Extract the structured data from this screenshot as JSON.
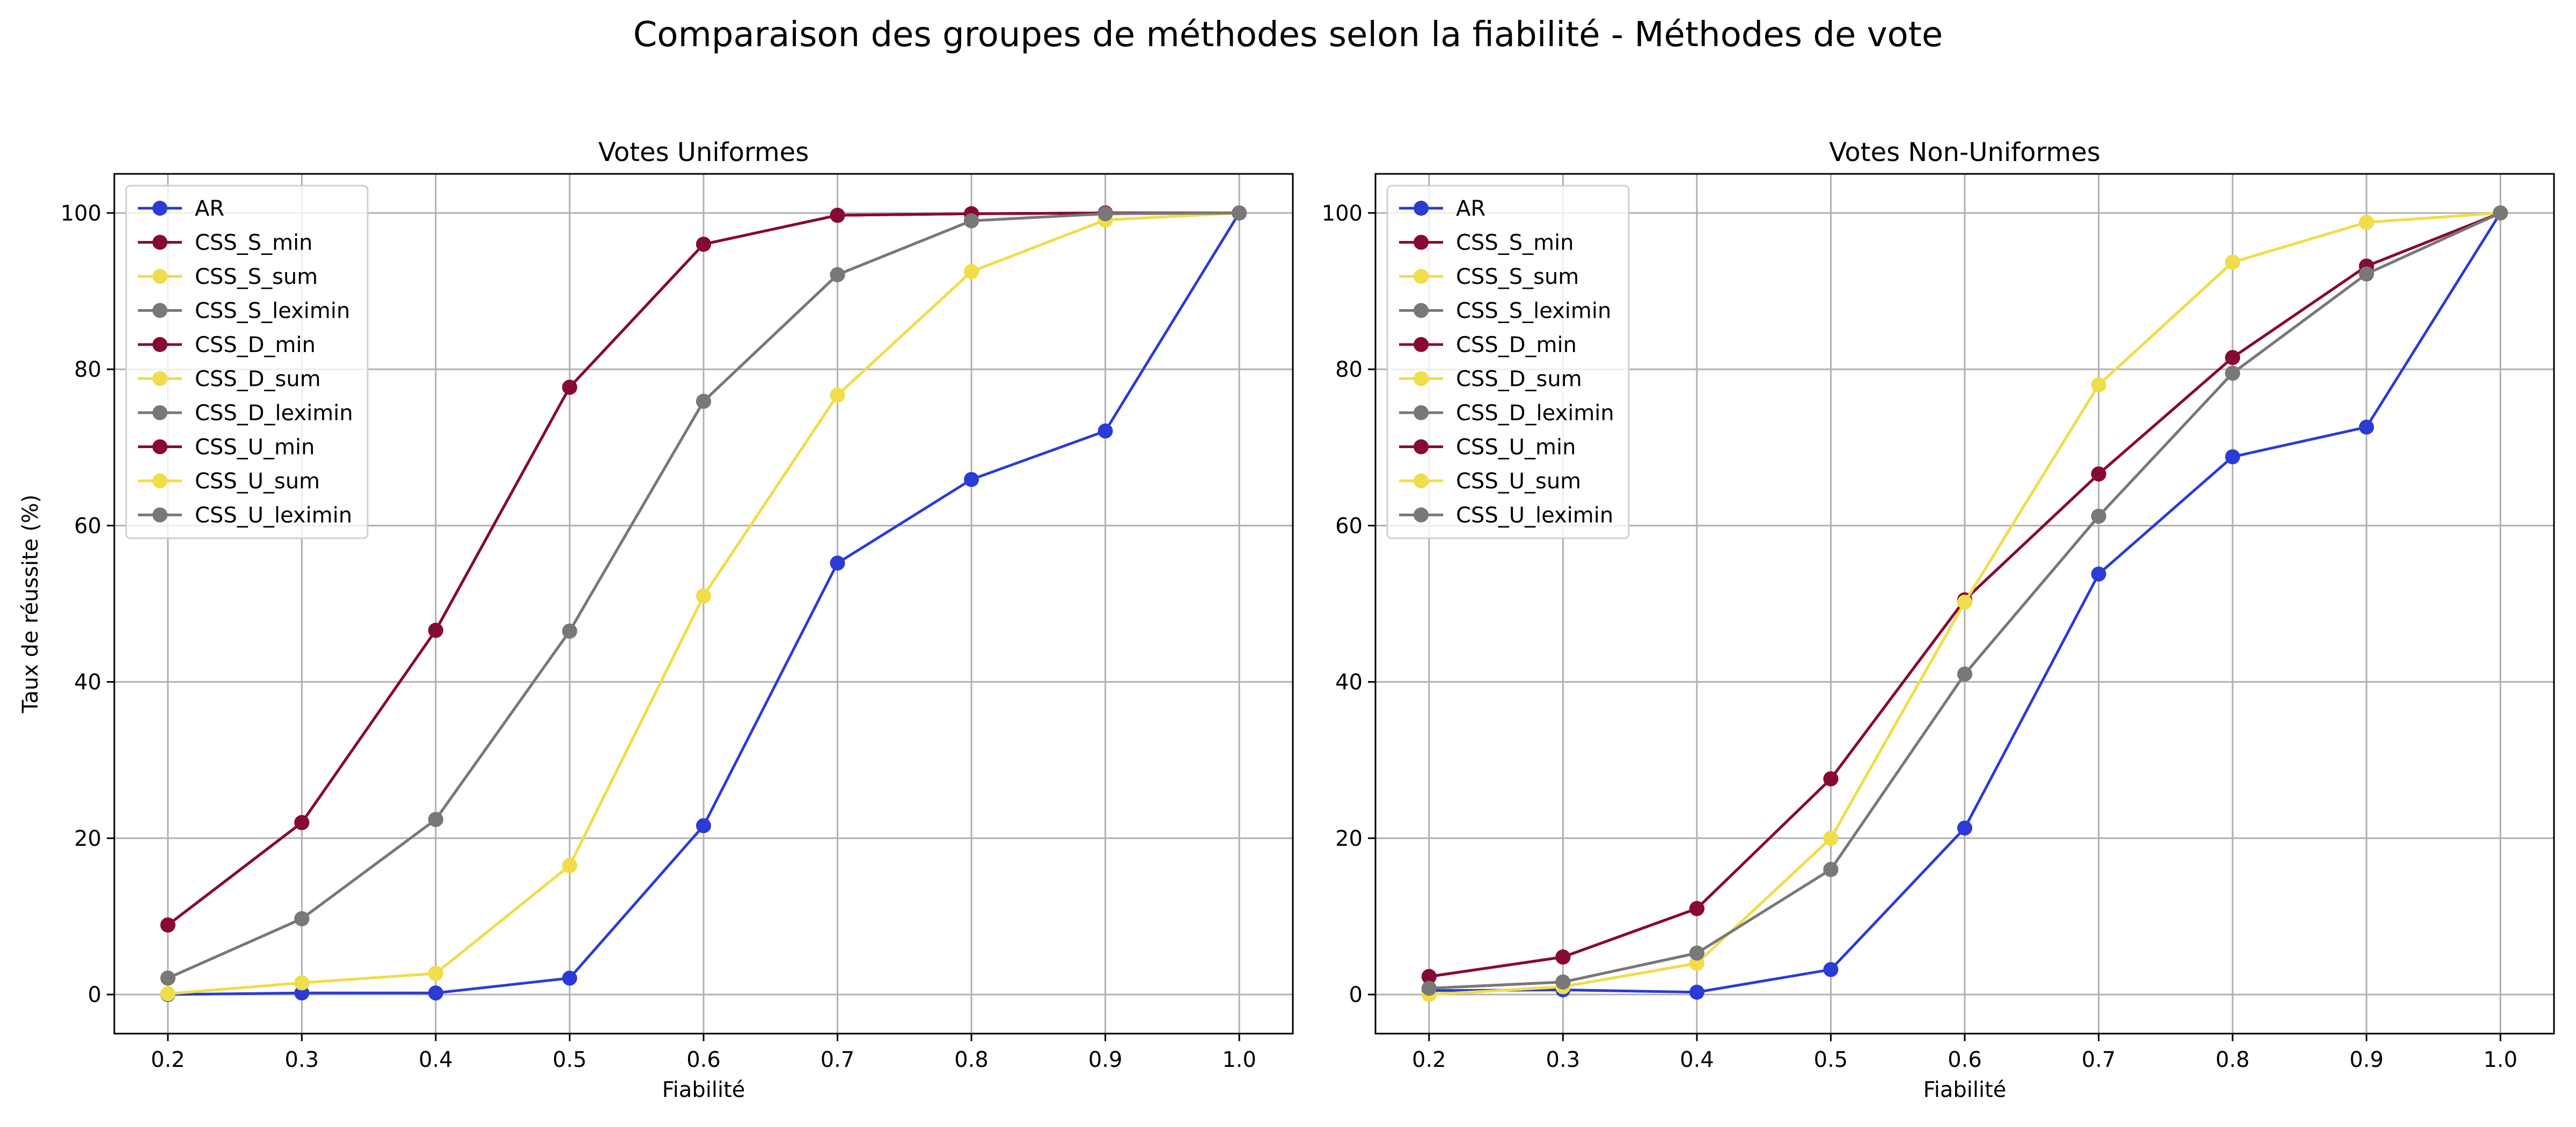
{
  "suptitle": "Comparaison des groupes de méthodes selon la fiabilité - Méthodes de vote",
  "colors": {
    "AR": "#2b3bd6",
    "min": "#870a35",
    "sum": "#f0dd4a",
    "leximin": "#787878",
    "grid": "#b0b0b0"
  },
  "chart_data": [
    {
      "type": "line",
      "title": "Votes Uniformes",
      "xlabel": "Fiabilité",
      "ylabel": "Taux de réussite (%)",
      "x": [
        0.2,
        0.3,
        0.4,
        0.5,
        0.6,
        0.7,
        0.8,
        0.9,
        1.0
      ],
      "xticks": [
        "0.2",
        "0.3",
        "0.4",
        "0.5",
        "0.6",
        "0.7",
        "0.8",
        "0.9",
        "1.0"
      ],
      "yticks": [
        "0",
        "20",
        "40",
        "60",
        "80",
        "100"
      ],
      "xlim": [
        0.16,
        1.04
      ],
      "ylim": [
        -5,
        105
      ],
      "grid": true,
      "legend_position": "upper-left",
      "series": [
        {
          "name": "AR",
          "group": "AR",
          "values": [
            0.0,
            0.2,
            0.2,
            2.1,
            21.6,
            55.2,
            65.9,
            72.1,
            100
          ]
        },
        {
          "name": "CSS_S_min",
          "group": "min",
          "values": [
            8.9,
            22.0,
            46.6,
            77.7,
            96.0,
            99.7,
            99.9,
            100,
            100
          ]
        },
        {
          "name": "CSS_S_sum",
          "group": "sum",
          "values": [
            0.1,
            1.5,
            2.7,
            16.5,
            51.0,
            76.7,
            92.5,
            99.1,
            100
          ]
        },
        {
          "name": "CSS_S_leximin",
          "group": "leximin",
          "values": [
            2.1,
            9.7,
            22.4,
            46.5,
            75.9,
            92.1,
            99.0,
            99.9,
            100
          ]
        },
        {
          "name": "CSS_D_min",
          "group": "min",
          "values": [
            8.9,
            22.0,
            46.6,
            77.7,
            96.0,
            99.7,
            99.9,
            100,
            100
          ]
        },
        {
          "name": "CSS_D_sum",
          "group": "sum",
          "values": [
            0.1,
            1.5,
            2.7,
            16.5,
            51.0,
            76.7,
            92.5,
            99.1,
            100
          ]
        },
        {
          "name": "CSS_D_leximin",
          "group": "leximin",
          "values": [
            2.1,
            9.7,
            22.4,
            46.5,
            75.9,
            92.1,
            99.0,
            99.9,
            100
          ]
        },
        {
          "name": "CSS_U_min",
          "group": "min",
          "values": [
            8.9,
            22.0,
            46.6,
            77.7,
            96.0,
            99.7,
            99.9,
            100,
            100
          ]
        },
        {
          "name": "CSS_U_sum",
          "group": "sum",
          "values": [
            0.1,
            1.5,
            2.7,
            16.5,
            51.0,
            76.7,
            92.5,
            99.1,
            100
          ]
        },
        {
          "name": "CSS_U_leximin",
          "group": "leximin",
          "values": [
            2.1,
            9.7,
            22.4,
            46.5,
            75.9,
            92.1,
            99.0,
            99.9,
            100
          ]
        }
      ]
    },
    {
      "type": "line",
      "title": "Votes Non-Uniformes",
      "xlabel": "Fiabilité",
      "ylabel": "",
      "x": [
        0.2,
        0.3,
        0.4,
        0.5,
        0.6,
        0.7,
        0.8,
        0.9,
        1.0
      ],
      "xticks": [
        "0.2",
        "0.3",
        "0.4",
        "0.5",
        "0.6",
        "0.7",
        "0.8",
        "0.9",
        "1.0"
      ],
      "yticks": [
        "0",
        "20",
        "40",
        "60",
        "80",
        "100"
      ],
      "xlim": [
        0.16,
        1.04
      ],
      "ylim": [
        -5,
        105
      ],
      "grid": true,
      "legend_position": "upper-left",
      "series": [
        {
          "name": "AR",
          "group": "AR",
          "values": [
            0.5,
            0.6,
            0.3,
            3.2,
            21.3,
            53.8,
            68.8,
            72.6,
            100
          ]
        },
        {
          "name": "CSS_S_min",
          "group": "min",
          "values": [
            2.3,
            4.8,
            11.0,
            27.6,
            50.5,
            66.6,
            81.5,
            93.2,
            100
          ]
        },
        {
          "name": "CSS_S_sum",
          "group": "sum",
          "values": [
            0.0,
            1.0,
            4.0,
            20.0,
            50.2,
            78.0,
            93.7,
            98.8,
            100
          ]
        },
        {
          "name": "CSS_S_leximin",
          "group": "leximin",
          "values": [
            0.8,
            1.6,
            5.3,
            16.0,
            41.0,
            61.2,
            79.5,
            92.2,
            100
          ]
        },
        {
          "name": "CSS_D_min",
          "group": "min",
          "values": [
            2.3,
            4.8,
            11.0,
            27.6,
            50.5,
            66.6,
            81.5,
            93.2,
            100
          ]
        },
        {
          "name": "CSS_D_sum",
          "group": "sum",
          "values": [
            0.0,
            1.0,
            4.0,
            20.0,
            50.2,
            78.0,
            93.7,
            98.8,
            100
          ]
        },
        {
          "name": "CSS_D_leximin",
          "group": "leximin",
          "values": [
            0.8,
            1.6,
            5.3,
            16.0,
            41.0,
            61.2,
            79.5,
            92.2,
            100
          ]
        },
        {
          "name": "CSS_U_min",
          "group": "min",
          "values": [
            2.3,
            4.8,
            11.0,
            27.6,
            50.5,
            66.6,
            81.5,
            93.2,
            100
          ]
        },
        {
          "name": "CSS_U_sum",
          "group": "sum",
          "values": [
            0.0,
            1.0,
            4.0,
            20.0,
            50.2,
            78.0,
            93.7,
            98.8,
            100
          ]
        },
        {
          "name": "CSS_U_leximin",
          "group": "leximin",
          "values": [
            0.8,
            1.6,
            5.3,
            16.0,
            41.0,
            61.2,
            79.5,
            92.2,
            100
          ]
        }
      ]
    }
  ]
}
